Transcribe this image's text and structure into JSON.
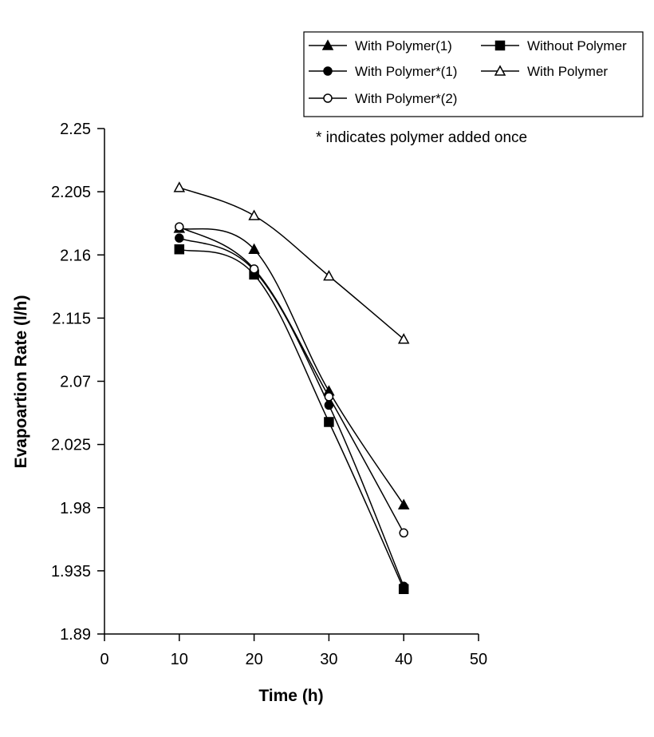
{
  "background": "#ffffff",
  "chart_data": {
    "type": "line",
    "title": "",
    "xlabel": "Time (h)",
    "ylabel": "Evapoartion Rate (l/h)",
    "xlim": [
      0,
      50
    ],
    "ylim": [
      1.89,
      2.25
    ],
    "xticks": [
      0,
      10,
      20,
      30,
      40,
      50
    ],
    "xtick_labels": [
      "0",
      "10",
      "20",
      "30",
      "40",
      "50"
    ],
    "yticks": [
      1.89,
      1.935,
      1.98,
      2.025,
      2.07,
      2.115,
      2.16,
      2.205,
      2.25
    ],
    "ytick_labels": [
      "1.89",
      "1.935",
      "1.98",
      "2.025",
      "2.07",
      "2.115",
      "2.16",
      "2.205",
      "2.25"
    ],
    "grid": false,
    "legend_position": "top-right",
    "annotation": "* indicates polymer added once",
    "x": [
      10,
      20,
      30,
      40
    ],
    "series": [
      {
        "name": "With Polymer(1)",
        "marker": "filled-triangle",
        "values": [
          2.179,
          2.164,
          2.063,
          1.982
        ]
      },
      {
        "name": "Without Polymer",
        "marker": "filled-square",
        "values": [
          2.164,
          2.146,
          2.041,
          1.922
        ]
      },
      {
        "name": "With Polymer*(1)",
        "marker": "filled-circle",
        "values": [
          2.172,
          2.149,
          2.053,
          1.924
        ]
      },
      {
        "name": "With Polymer",
        "marker": "open-triangle",
        "values": [
          2.208,
          2.188,
          2.145,
          2.1
        ]
      },
      {
        "name": "With Polymer*(2)",
        "marker": "open-circle",
        "values": [
          2.18,
          2.15,
          2.059,
          1.962
        ]
      }
    ]
  }
}
